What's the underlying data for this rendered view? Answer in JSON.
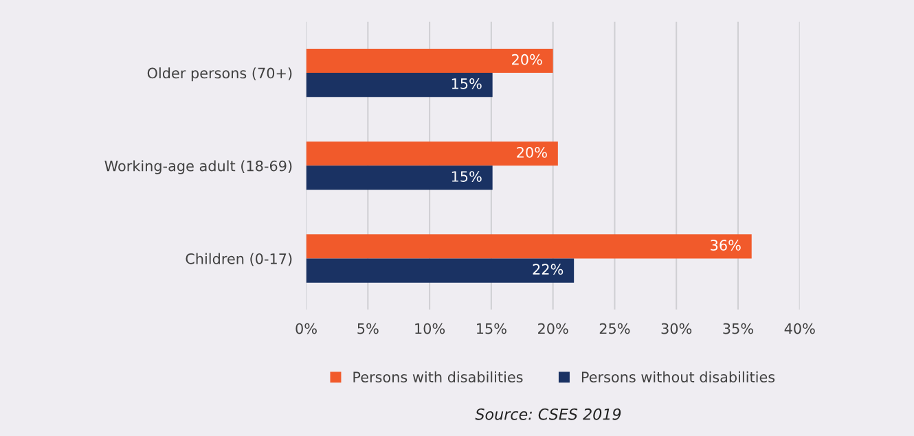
{
  "chart_data": {
    "type": "bar",
    "orientation": "horizontal",
    "categories": [
      "Older persons (70+)",
      "Working-age adult (18-69)",
      "Children (0-17)"
    ],
    "series": [
      {
        "name": "Persons with disabilities",
        "color": "#f15a2b",
        "values": [
          20.0,
          20.4,
          36.1
        ],
        "value_labels": [
          "20%",
          "20%",
          "36%"
        ]
      },
      {
        "name": "Persons without disabilities",
        "color": "#1a3263",
        "values": [
          15.1,
          15.1,
          21.7
        ],
        "value_labels": [
          "15%",
          "15%",
          "22%"
        ]
      }
    ],
    "xlim": [
      0,
      40
    ],
    "xticks": [
      {
        "value": 0,
        "label": "0%"
      },
      {
        "value": 5,
        "label": "5%"
      },
      {
        "value": 10,
        "label": "10%"
      },
      {
        "value": 15,
        "label": "15%"
      },
      {
        "value": 20,
        "label": "20%"
      },
      {
        "value": 25,
        "label": "25%"
      },
      {
        "value": 30,
        "label": "30%"
      },
      {
        "value": 35,
        "label": "35%"
      },
      {
        "value": 40,
        "label": "40%"
      }
    ],
    "grid": "x",
    "legend": "bottom",
    "annotations": [
      "Source: CSES 2019"
    ]
  }
}
